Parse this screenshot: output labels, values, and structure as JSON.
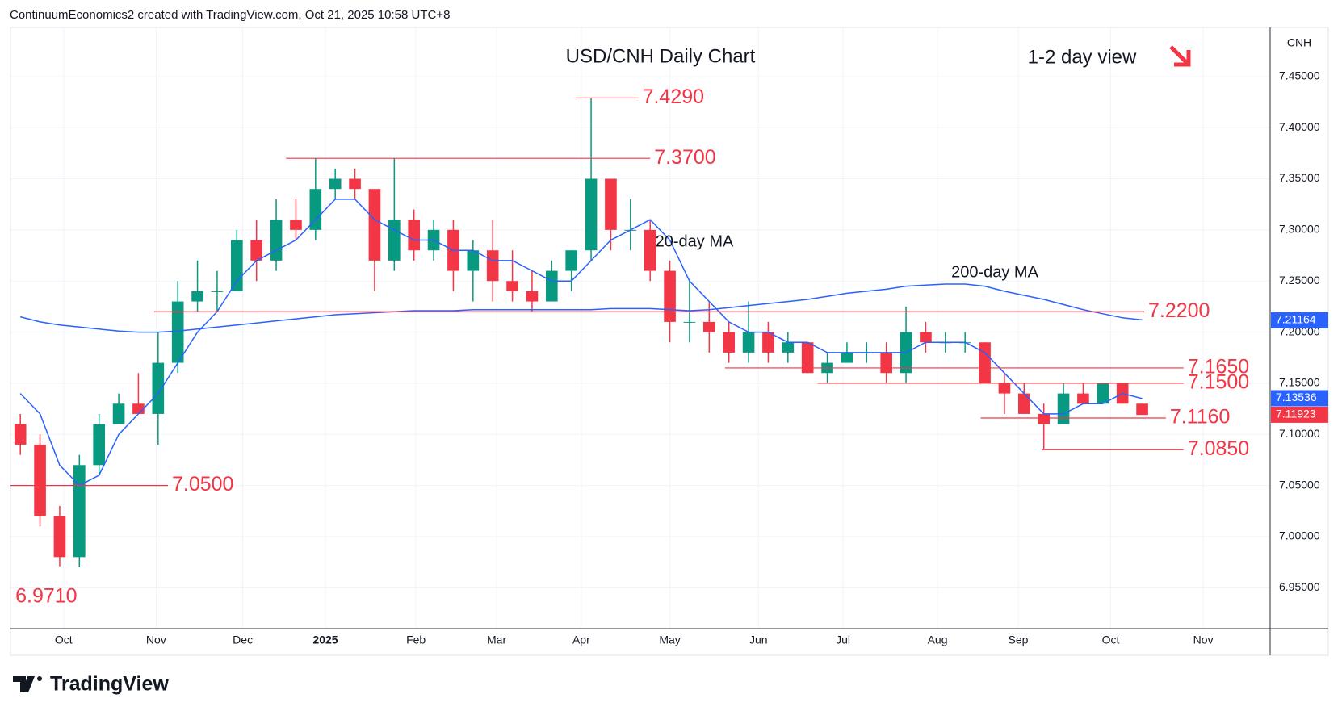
{
  "chart_data": {
    "type": "candlestick",
    "header": "ContinuumEconomics2 created with TradingView.com, Oct 21, 2025 10:58 UTC+8",
    "title": "USD/CNH Daily Chart",
    "subtitle": "1-2 day view",
    "currency": "CNH",
    "brand": "TradingView",
    "up_color": "#089981",
    "down_color": "#f23645",
    "open": [
      7.11,
      7.09,
      7.02,
      6.98,
      7.07,
      7.11,
      7.13,
      7.12,
      7.17,
      7.23,
      7.24,
      7.24,
      7.29,
      7.27,
      7.31,
      7.3,
      7.34,
      7.35,
      7.34,
      7.27,
      7.31,
      7.28,
      7.3,
      7.26,
      7.28,
      7.25,
      7.24,
      7.23,
      7.26,
      7.28,
      7.35,
      7.3,
      7.3,
      7.26,
      7.21,
      7.21,
      7.2,
      7.18,
      7.2,
      7.18,
      7.19,
      7.16,
      7.17,
      7.18,
      7.18,
      7.16,
      7.2,
      7.19,
      7.19,
      7.19,
      7.15,
      7.14,
      7.12,
      7.11,
      7.14,
      7.13,
      7.15,
      7.13
    ],
    "high": [
      7.12,
      7.1,
      7.03,
      7.08,
      7.12,
      7.14,
      7.16,
      7.2,
      7.25,
      7.27,
      7.26,
      7.3,
      7.31,
      7.33,
      7.33,
      7.37,
      7.36,
      7.36,
      7.34,
      7.37,
      7.32,
      7.31,
      7.31,
      7.29,
      7.31,
      7.28,
      7.26,
      7.27,
      7.28,
      7.429,
      7.35,
      7.33,
      7.31,
      7.27,
      7.25,
      7.23,
      7.21,
      7.23,
      7.21,
      7.2,
      7.19,
      7.18,
      7.19,
      7.19,
      7.19,
      7.225,
      7.21,
      7.2,
      7.2,
      7.19,
      7.16,
      7.15,
      7.13,
      7.15,
      7.15,
      7.15,
      7.15,
      7.13
    ],
    "low": [
      7.08,
      7.01,
      6.971,
      6.97,
      7.06,
      7.11,
      7.12,
      7.09,
      7.16,
      7.22,
      7.22,
      7.24,
      7.25,
      7.26,
      7.29,
      7.29,
      7.33,
      7.33,
      7.24,
      7.26,
      7.27,
      7.27,
      7.24,
      7.23,
      7.23,
      7.23,
      7.22,
      7.23,
      7.24,
      7.27,
      7.28,
      7.28,
      7.25,
      7.19,
      7.19,
      7.18,
      7.17,
      7.17,
      7.17,
      7.17,
      7.16,
      7.15,
      7.17,
      7.17,
      7.15,
      7.15,
      7.18,
      7.18,
      7.18,
      7.15,
      7.12,
      7.12,
      7.085,
      7.11,
      7.13,
      7.13,
      7.13,
      7.12
    ],
    "close": [
      7.09,
      7.02,
      6.98,
      7.07,
      7.11,
      7.13,
      7.12,
      7.17,
      7.23,
      7.24,
      7.24,
      7.29,
      7.27,
      7.31,
      7.3,
      7.34,
      7.35,
      7.34,
      7.27,
      7.31,
      7.28,
      7.3,
      7.26,
      7.28,
      7.25,
      7.24,
      7.23,
      7.26,
      7.28,
      7.35,
      7.3,
      7.3,
      7.26,
      7.21,
      7.21,
      7.2,
      7.18,
      7.2,
      7.18,
      7.19,
      7.16,
      7.17,
      7.18,
      7.18,
      7.16,
      7.2,
      7.19,
      7.19,
      7.19,
      7.15,
      7.14,
      7.12,
      7.11,
      7.14,
      7.13,
      7.15,
      7.13,
      7.119
    ],
    "ma": [
      {
        "name": "20-day MA",
        "color": "#2962ff",
        "label_color": "#5b3fb8",
        "values": [
          7.14,
          7.12,
          7.07,
          7.05,
          7.06,
          7.1,
          7.12,
          7.14,
          7.17,
          7.2,
          7.22,
          7.25,
          7.27,
          7.28,
          7.29,
          7.31,
          7.33,
          7.33,
          7.31,
          7.3,
          7.29,
          7.29,
          7.28,
          7.28,
          7.27,
          7.27,
          7.26,
          7.25,
          7.25,
          7.27,
          7.29,
          7.3,
          7.31,
          7.29,
          7.25,
          7.23,
          7.21,
          7.2,
          7.2,
          7.19,
          7.19,
          7.18,
          7.18,
          7.18,
          7.18,
          7.18,
          7.19,
          7.19,
          7.19,
          7.18,
          7.16,
          7.14,
          7.12,
          7.12,
          7.13,
          7.13,
          7.14,
          7.135
        ]
      },
      {
        "name": "200-day MA",
        "color": "#2962ff",
        "label_color": "#2962ff",
        "values": [
          7.215,
          7.21,
          7.207,
          7.205,
          7.203,
          7.201,
          7.2,
          7.2,
          7.201,
          7.203,
          7.205,
          7.207,
          7.209,
          7.211,
          7.213,
          7.215,
          7.217,
          7.218,
          7.219,
          7.22,
          7.221,
          7.221,
          7.221,
          7.222,
          7.222,
          7.222,
          7.222,
          7.222,
          7.222,
          7.222,
          7.223,
          7.223,
          7.223,
          7.222,
          7.221,
          7.222,
          7.224,
          7.226,
          7.228,
          7.23,
          7.232,
          7.235,
          7.238,
          7.24,
          7.242,
          7.245,
          7.246,
          7.247,
          7.247,
          7.245,
          7.24,
          7.236,
          7.232,
          7.227,
          7.222,
          7.218,
          7.214,
          7.212
        ]
      }
    ],
    "levels": [
      {
        "value": 7.429,
        "label": "7.4290",
        "xrange": [
          28.7,
          31.9
        ]
      },
      {
        "value": 7.37,
        "label": "7.3700",
        "xrange": [
          14,
          32.5
        ]
      },
      {
        "value": 7.22,
        "label": "7.2200",
        "xrange": [
          7.3,
          57.6
        ]
      },
      {
        "value": 7.165,
        "label": "7.1650",
        "xrange": [
          36.3,
          59.6
        ]
      },
      {
        "value": 7.15,
        "label": "7.1500",
        "xrange": [
          41,
          59.6
        ]
      },
      {
        "value": 7.116,
        "label": "7.1160",
        "xrange": [
          49.3,
          58.7
        ]
      },
      {
        "value": 7.085,
        "label": "7.0850",
        "xrange": [
          52.4,
          59.6
        ]
      },
      {
        "value": 7.05,
        "label": "7.0500",
        "xrange": [
          0,
          8
        ]
      },
      {
        "value": 6.971,
        "label": "6.9710"
      }
    ],
    "price_labels": [
      {
        "value": 7.21164,
        "color": "#2962ff"
      },
      {
        "value": 7.13536,
        "color": "#2962ff"
      },
      {
        "value": 7.11923,
        "color": "#f23645"
      }
    ],
    "xlim": [
      0,
      64
    ],
    "xticks": [
      {
        "value": 2.7,
        "label": "Oct"
      },
      {
        "value": 7.4,
        "label": "Nov"
      },
      {
        "value": 11.8,
        "label": "Dec"
      },
      {
        "value": 16.0,
        "label": "2025"
      },
      {
        "value": 20.6,
        "label": "Feb"
      },
      {
        "value": 24.7,
        "label": "Mar"
      },
      {
        "value": 29.0,
        "label": "Apr"
      },
      {
        "value": 33.5,
        "label": "May"
      },
      {
        "value": 38.0,
        "label": "Jun"
      },
      {
        "value": 42.3,
        "label": "Jul"
      },
      {
        "value": 47.1,
        "label": "Aug"
      },
      {
        "value": 51.2,
        "label": "Sep"
      },
      {
        "value": 55.9,
        "label": "Oct"
      },
      {
        "value": 60.6,
        "label": "Nov"
      }
    ],
    "ylim": [
      6.91,
      7.498
    ],
    "yticks": [
      {
        "value": 6.95,
        "label": "6.95000"
      },
      {
        "value": 7.0,
        "label": "7.00000"
      },
      {
        "value": 7.05,
        "label": "7.05000"
      },
      {
        "value": 7.1,
        "label": "7.10000"
      },
      {
        "value": 7.15,
        "label": "7.15000"
      },
      {
        "value": 7.2,
        "label": "7.20000"
      },
      {
        "value": 7.25,
        "label": "7.25000"
      },
      {
        "value": 7.3,
        "label": "7.30000"
      },
      {
        "value": 7.35,
        "label": "7.35000"
      },
      {
        "value": 7.4,
        "label": "7.40000"
      },
      {
        "value": 7.45,
        "label": "7.45000"
      }
    ],
    "grid": true
  }
}
